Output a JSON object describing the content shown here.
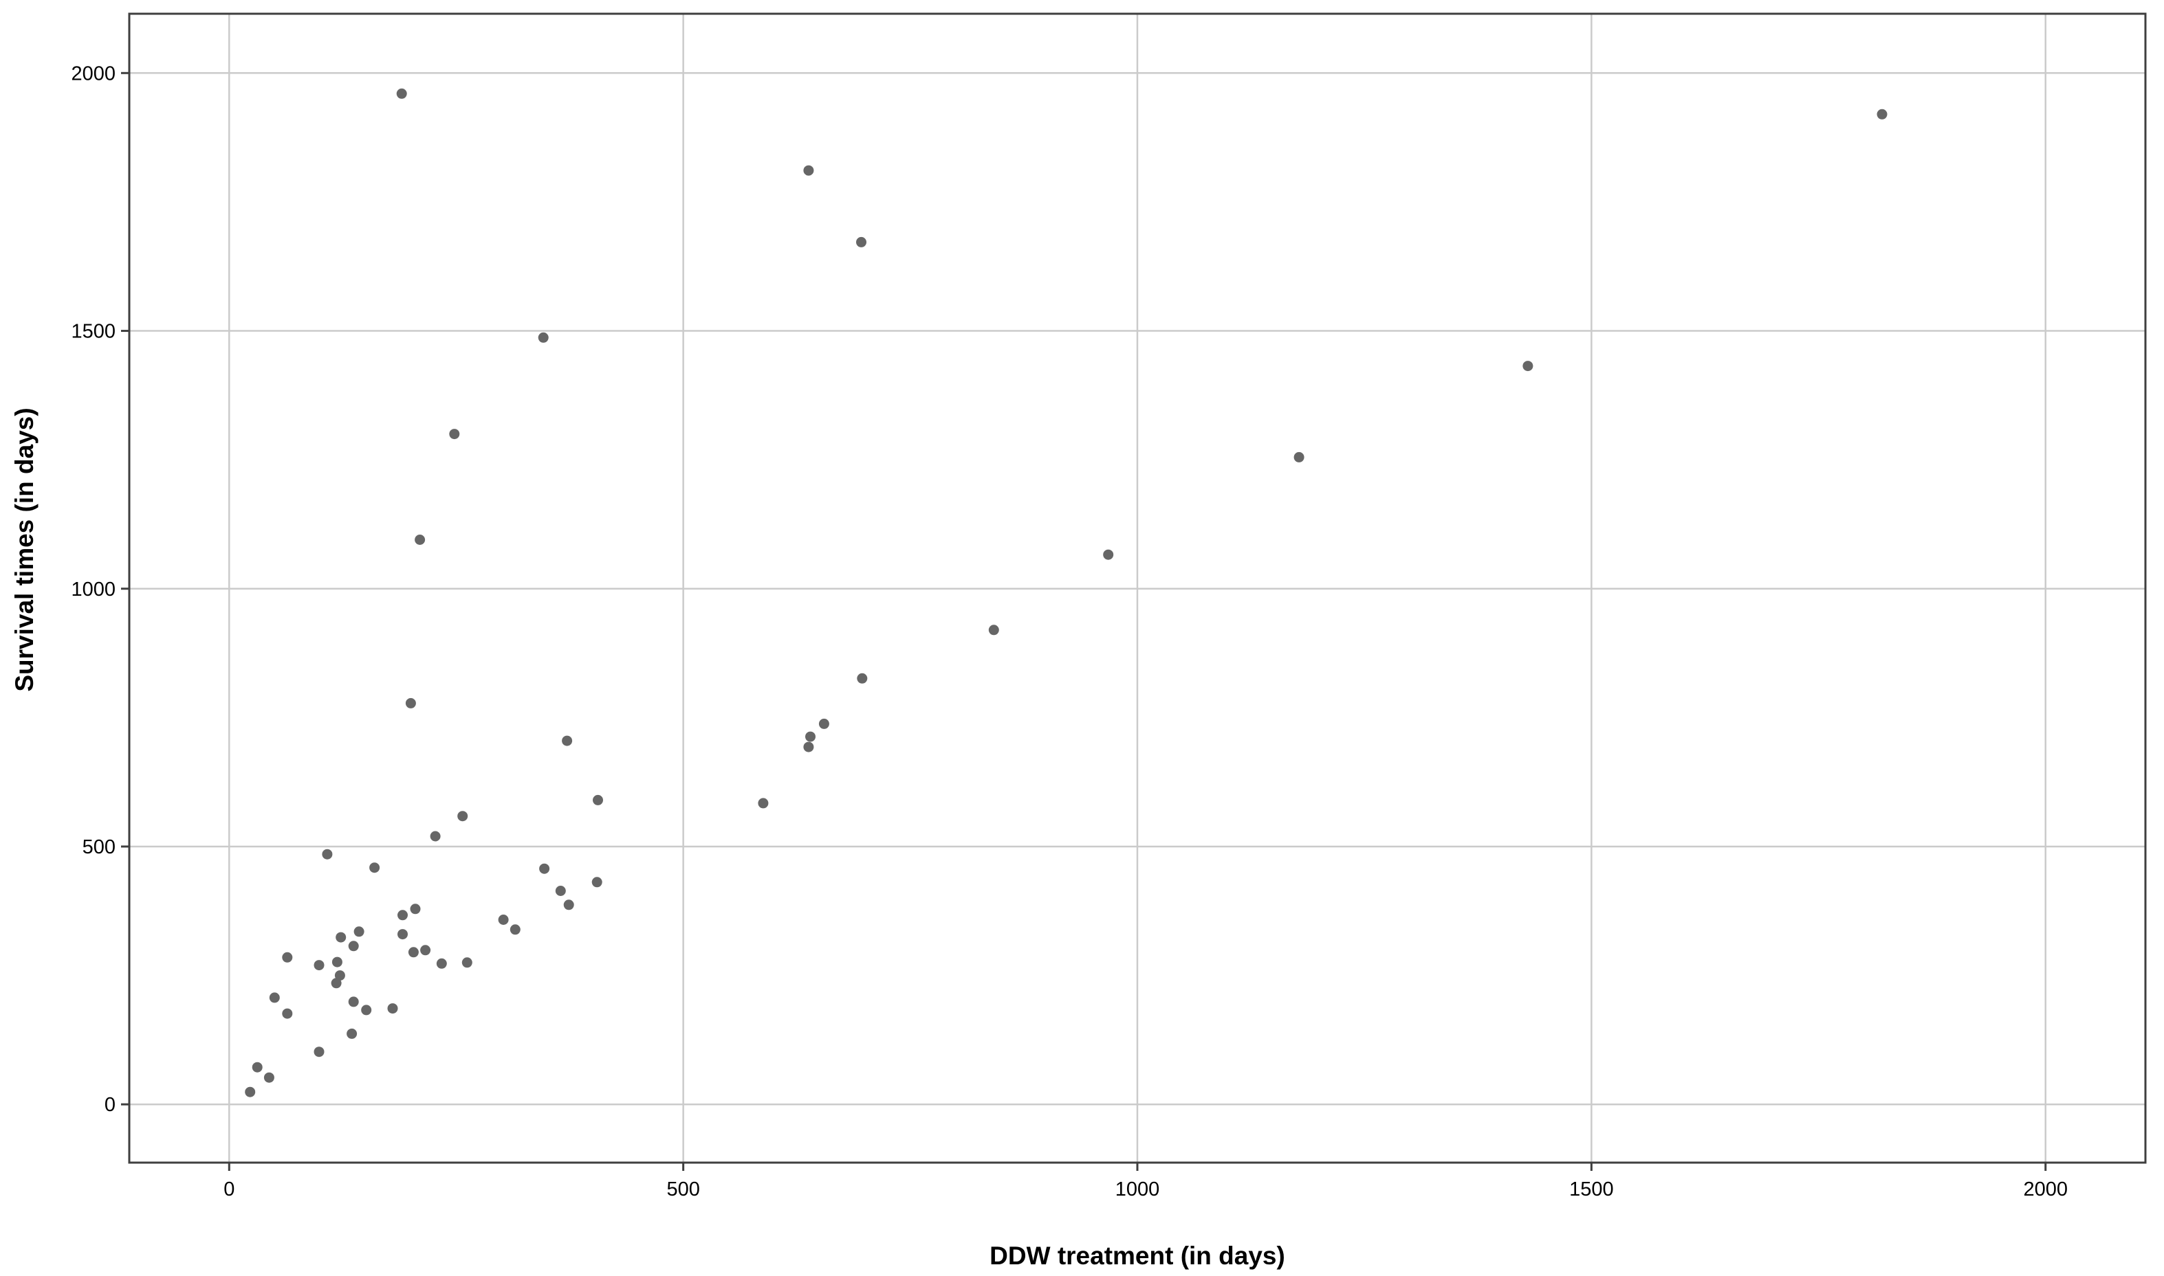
{
  "figure": {
    "background": "#ffffff",
    "point_color": "#666666",
    "grid_color": "#cbcbcb",
    "frame_color": "#3f3f3f",
    "tick_color": "#3f3f3f",
    "text_color": "#000000",
    "point_radius": 7.5
  },
  "chart_data": {
    "type": "scatter",
    "title": "",
    "xlabel": "DDW treatment (in days)",
    "ylabel": "Survival times (in days)",
    "x_ticks": [
      0,
      500,
      1000,
      1500,
      2000
    ],
    "y_ticks": [
      0,
      500,
      1000,
      1500,
      2000
    ],
    "x_tick_labels": [
      "0",
      "500",
      "1000",
      "1500",
      "2000"
    ],
    "y_tick_labels": [
      "0",
      "500",
      "1000",
      "1500",
      "2000"
    ],
    "xlim": [
      -110,
      2110
    ],
    "ylim": [
      -113,
      2115
    ],
    "grid": true,
    "legend": false,
    "points": [
      [
        23,
        24
      ],
      [
        31,
        72
      ],
      [
        44,
        52
      ],
      [
        50,
        207
      ],
      [
        64,
        176
      ],
      [
        64,
        285
      ],
      [
        99,
        102
      ],
      [
        99,
        270
      ],
      [
        108,
        485
      ],
      [
        118,
        235
      ],
      [
        119,
        276
      ],
      [
        122,
        250
      ],
      [
        123,
        324
      ],
      [
        135,
        137
      ],
      [
        137,
        199
      ],
      [
        137,
        307
      ],
      [
        143,
        335
      ],
      [
        151,
        183
      ],
      [
        160,
        459
      ],
      [
        180,
        186
      ],
      [
        190,
        1960
      ],
      [
        191,
        330
      ],
      [
        191,
        367
      ],
      [
        200,
        778
      ],
      [
        203,
        295
      ],
      [
        205,
        379
      ],
      [
        210,
        1095
      ],
      [
        216,
        299
      ],
      [
        227,
        520
      ],
      [
        234,
        273
      ],
      [
        248,
        1300
      ],
      [
        257,
        559
      ],
      [
        262,
        275
      ],
      [
        302,
        358
      ],
      [
        315,
        339
      ],
      [
        346,
        1487
      ],
      [
        347,
        457
      ],
      [
        365,
        414
      ],
      [
        372,
        705
      ],
      [
        374,
        387
      ],
      [
        405,
        431
      ],
      [
        406,
        590
      ],
      [
        588,
        584
      ],
      [
        638,
        693
      ],
      [
        638,
        1811
      ],
      [
        640,
        713
      ],
      [
        655,
        738
      ],
      [
        696,
        1672
      ],
      [
        697,
        826
      ],
      [
        842,
        920
      ],
      [
        968,
        1066
      ],
      [
        1178,
        1255
      ],
      [
        1430,
        1432
      ],
      [
        1820,
        1920
      ]
    ]
  }
}
